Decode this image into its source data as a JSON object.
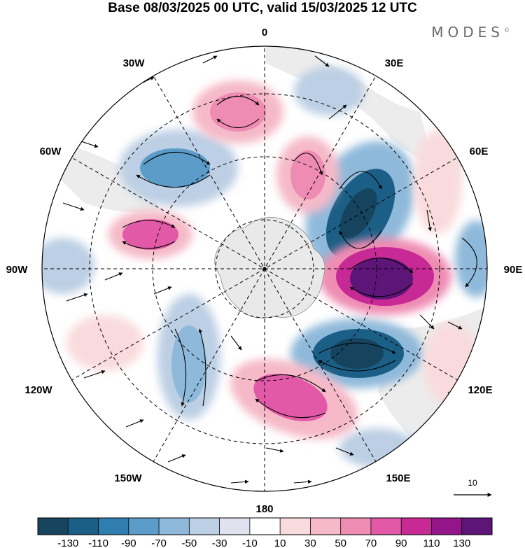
{
  "header": {
    "title": "Base 08/03/2025 00 UTC, valid 15/03/2025 12 UTC",
    "brand": "MODES",
    "brand_mark": "©"
  },
  "map": {
    "projection": "south-polar-stereographic",
    "longitude_labels": {
      "top": "0",
      "top_right": "30E",
      "right_upper": "60E",
      "right": "90E",
      "right_lower": "120E",
      "bottom_right": "150E",
      "bottom": "180",
      "bottom_left": "150W",
      "left_lower": "120W",
      "left": "90W",
      "left_upper": "60W",
      "top_left": "30W"
    },
    "reference_vector_label": "10"
  },
  "colorbar": {
    "colors": [
      "#16435e",
      "#1c5f86",
      "#2f7eaf",
      "#5b9cc9",
      "#8fb9da",
      "#bccfe4",
      "#e0e2ef",
      "#ffffff",
      "#f9dbdd",
      "#f5b9c8",
      "#ef8cb3",
      "#e25aa7",
      "#c72a95",
      "#94158a",
      "#5d1578"
    ],
    "ticks": [
      "-130",
      "-110",
      "-90",
      "-70",
      "-50",
      "-30",
      "-10",
      "10",
      "30",
      "50",
      "70",
      "90",
      "110",
      "130"
    ]
  }
}
